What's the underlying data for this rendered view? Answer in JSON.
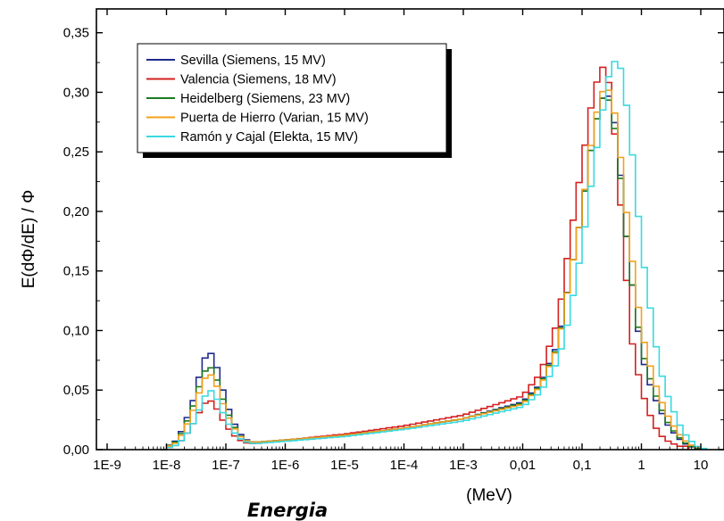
{
  "chart_data": {
    "type": "line",
    "ylabel": "E(dΦ/dE) / Φ",
    "xlabel": "Energia",
    "xunit": "(MeV)",
    "x_scale": "log",
    "xlim": [
      1e-09,
      50
    ],
    "ylim": [
      0,
      0.37
    ],
    "x_ticks": [
      {
        "value": 1e-09,
        "label": "1E-9"
      },
      {
        "value": 1e-08,
        "label": "1E-8"
      },
      {
        "value": 1e-07,
        "label": "1E-7"
      },
      {
        "value": 1e-06,
        "label": "1E-6"
      },
      {
        "value": 1e-05,
        "label": "1E-5"
      },
      {
        "value": 0.0001,
        "label": "1E-4"
      },
      {
        "value": 0.001,
        "label": "1E-3"
      },
      {
        "value": 0.01,
        "label": "0,01"
      },
      {
        "value": 0.1,
        "label": "0,1"
      },
      {
        "value": 1,
        "label": "1"
      },
      {
        "value": 10,
        "label": "10"
      }
    ],
    "y_ticks": [
      {
        "value": 0.0,
        "label": "0,00"
      },
      {
        "value": 0.05,
        "label": "0,05"
      },
      {
        "value": 0.1,
        "label": "0,10"
      },
      {
        "value": 0.15,
        "label": "0,15"
      },
      {
        "value": 0.2,
        "label": "0,20"
      },
      {
        "value": 0.25,
        "label": "0,25"
      },
      {
        "value": 0.3,
        "label": "0,30"
      },
      {
        "value": 0.35,
        "label": "0,35"
      }
    ],
    "step": true,
    "legend_position": "top-left",
    "grid": false,
    "series": [
      {
        "name": "Sevilla (Siemens, 15 MV)",
        "color": "#1f2a8c",
        "points": [
          [
            1e-08,
            0.002
          ],
          [
            1.5e-08,
            0.008
          ],
          [
            2e-08,
            0.02
          ],
          [
            3e-08,
            0.045
          ],
          [
            4e-08,
            0.072
          ],
          [
            5e-08,
            0.082
          ],
          [
            6e-08,
            0.08
          ],
          [
            7.5e-08,
            0.065
          ],
          [
            1e-07,
            0.04
          ],
          [
            1.5e-07,
            0.018
          ],
          [
            2e-07,
            0.009
          ],
          [
            3e-07,
            0.006
          ],
          [
            1e-06,
            0.008
          ],
          [
            1e-05,
            0.012
          ],
          [
            0.0001,
            0.018
          ],
          [
            0.001,
            0.026
          ],
          [
            0.01,
            0.04
          ],
          [
            0.02,
            0.055
          ],
          [
            0.04,
            0.09
          ],
          [
            0.06,
            0.14
          ],
          [
            0.1,
            0.2
          ],
          [
            0.15,
            0.26
          ],
          [
            0.2,
            0.29
          ],
          [
            0.25,
            0.3
          ],
          [
            0.3,
            0.295
          ],
          [
            0.4,
            0.26
          ],
          [
            0.5,
            0.2
          ],
          [
            0.7,
            0.14
          ],
          [
            1,
            0.08
          ],
          [
            1.5,
            0.05
          ],
          [
            2,
            0.035
          ],
          [
            3,
            0.018
          ],
          [
            5,
            0.006
          ],
          [
            8,
            0.001
          ]
        ]
      },
      {
        "name": "Valencia (Siemens, 18 MV)",
        "color": "#d42020",
        "points": [
          [
            1e-08,
            0.001
          ],
          [
            1.5e-08,
            0.004
          ],
          [
            2e-08,
            0.01
          ],
          [
            3e-08,
            0.024
          ],
          [
            4e-08,
            0.036
          ],
          [
            5e-08,
            0.042
          ],
          [
            6e-08,
            0.04
          ],
          [
            7.5e-08,
            0.032
          ],
          [
            1e-07,
            0.02
          ],
          [
            1.5e-07,
            0.01
          ],
          [
            2e-07,
            0.006
          ],
          [
            3e-07,
            0.005
          ],
          [
            1e-06,
            0.008
          ],
          [
            1e-05,
            0.013
          ],
          [
            0.0001,
            0.02
          ],
          [
            0.001,
            0.029
          ],
          [
            0.01,
            0.045
          ],
          [
            0.02,
            0.064
          ],
          [
            0.04,
            0.11
          ],
          [
            0.06,
            0.17
          ],
          [
            0.1,
            0.24
          ],
          [
            0.15,
            0.295
          ],
          [
            0.2,
            0.318
          ],
          [
            0.25,
            0.324
          ],
          [
            0.3,
            0.3
          ],
          [
            0.4,
            0.24
          ],
          [
            0.5,
            0.17
          ],
          [
            0.7,
            0.09
          ],
          [
            1,
            0.05
          ],
          [
            1.5,
            0.025
          ],
          [
            2,
            0.013
          ],
          [
            3,
            0.006
          ],
          [
            5,
            0.002
          ]
        ]
      },
      {
        "name": "Heidelberg (Siemens, 23 MV)",
        "color": "#1e7a20",
        "points": [
          [
            1e-08,
            0.002
          ],
          [
            1.5e-08,
            0.007
          ],
          [
            2e-08,
            0.018
          ],
          [
            3e-08,
            0.04
          ],
          [
            4e-08,
            0.062
          ],
          [
            5e-08,
            0.07
          ],
          [
            6e-08,
            0.068
          ],
          [
            7.5e-08,
            0.055
          ],
          [
            1e-07,
            0.034
          ],
          [
            1.5e-07,
            0.016
          ],
          [
            2e-07,
            0.008
          ],
          [
            3e-07,
            0.006
          ],
          [
            1e-06,
            0.008
          ],
          [
            1e-05,
            0.012
          ],
          [
            0.0001,
            0.018
          ],
          [
            0.001,
            0.026
          ],
          [
            0.01,
            0.039
          ],
          [
            0.02,
            0.054
          ],
          [
            0.04,
            0.088
          ],
          [
            0.06,
            0.14
          ],
          [
            0.1,
            0.2
          ],
          [
            0.15,
            0.26
          ],
          [
            0.2,
            0.29
          ],
          [
            0.25,
            0.3
          ],
          [
            0.3,
            0.29
          ],
          [
            0.4,
            0.255
          ],
          [
            0.5,
            0.2
          ],
          [
            0.7,
            0.14
          ],
          [
            1,
            0.085
          ],
          [
            1.5,
            0.055
          ],
          [
            2,
            0.038
          ],
          [
            3,
            0.02
          ],
          [
            5,
            0.007
          ],
          [
            8,
            0.001
          ]
        ]
      },
      {
        "name": "Puerta de Hierro (Varian, 15 MV)",
        "color": "#f5a01a",
        "points": [
          [
            1e-08,
            0.002
          ],
          [
            1.5e-08,
            0.006
          ],
          [
            2e-08,
            0.016
          ],
          [
            3e-08,
            0.036
          ],
          [
            4e-08,
            0.056
          ],
          [
            5e-08,
            0.064
          ],
          [
            6e-08,
            0.062
          ],
          [
            7.5e-08,
            0.05
          ],
          [
            1e-07,
            0.031
          ],
          [
            1.5e-07,
            0.015
          ],
          [
            2e-07,
            0.008
          ],
          [
            3e-07,
            0.006
          ],
          [
            1e-06,
            0.008
          ],
          [
            1e-05,
            0.012
          ],
          [
            0.0001,
            0.018
          ],
          [
            0.001,
            0.026
          ],
          [
            0.01,
            0.038
          ],
          [
            0.02,
            0.053
          ],
          [
            0.04,
            0.087
          ],
          [
            0.06,
            0.14
          ],
          [
            0.1,
            0.2
          ],
          [
            0.15,
            0.265
          ],
          [
            0.2,
            0.296
          ],
          [
            0.25,
            0.305
          ],
          [
            0.3,
            0.3
          ],
          [
            0.4,
            0.27
          ],
          [
            0.5,
            0.22
          ],
          [
            0.7,
            0.16
          ],
          [
            1,
            0.1
          ],
          [
            1.5,
            0.065
          ],
          [
            2,
            0.045
          ],
          [
            3,
            0.025
          ],
          [
            5,
            0.009
          ],
          [
            8,
            0.002
          ]
        ]
      },
      {
        "name": "Ramón y Cajal (Elekta, 15 MV)",
        "color": "#39d9e0",
        "points": [
          [
            1e-08,
            0.001
          ],
          [
            1.5e-08,
            0.004
          ],
          [
            2e-08,
            0.01
          ],
          [
            3e-08,
            0.024
          ],
          [
            4e-08,
            0.04
          ],
          [
            5e-08,
            0.05
          ],
          [
            6e-08,
            0.049
          ],
          [
            7.5e-08,
            0.04
          ],
          [
            1e-07,
            0.025
          ],
          [
            1.5e-07,
            0.012
          ],
          [
            2e-07,
            0.007
          ],
          [
            3e-07,
            0.005
          ],
          [
            1e-06,
            0.007
          ],
          [
            1e-05,
            0.011
          ],
          [
            0.0001,
            0.017
          ],
          [
            0.001,
            0.024
          ],
          [
            0.01,
            0.036
          ],
          [
            0.02,
            0.048
          ],
          [
            0.04,
            0.075
          ],
          [
            0.06,
            0.11
          ],
          [
            0.1,
            0.17
          ],
          [
            0.15,
            0.23
          ],
          [
            0.2,
            0.27
          ],
          [
            0.25,
            0.3
          ],
          [
            0.3,
            0.32
          ],
          [
            0.4,
            0.33
          ],
          [
            0.5,
            0.31
          ],
          [
            0.7,
            0.25
          ],
          [
            1,
            0.17
          ],
          [
            1.5,
            0.11
          ],
          [
            2,
            0.07
          ],
          [
            3,
            0.04
          ],
          [
            5,
            0.015
          ],
          [
            8,
            0.004
          ],
          [
            10,
            0.001
          ]
        ]
      }
    ]
  }
}
